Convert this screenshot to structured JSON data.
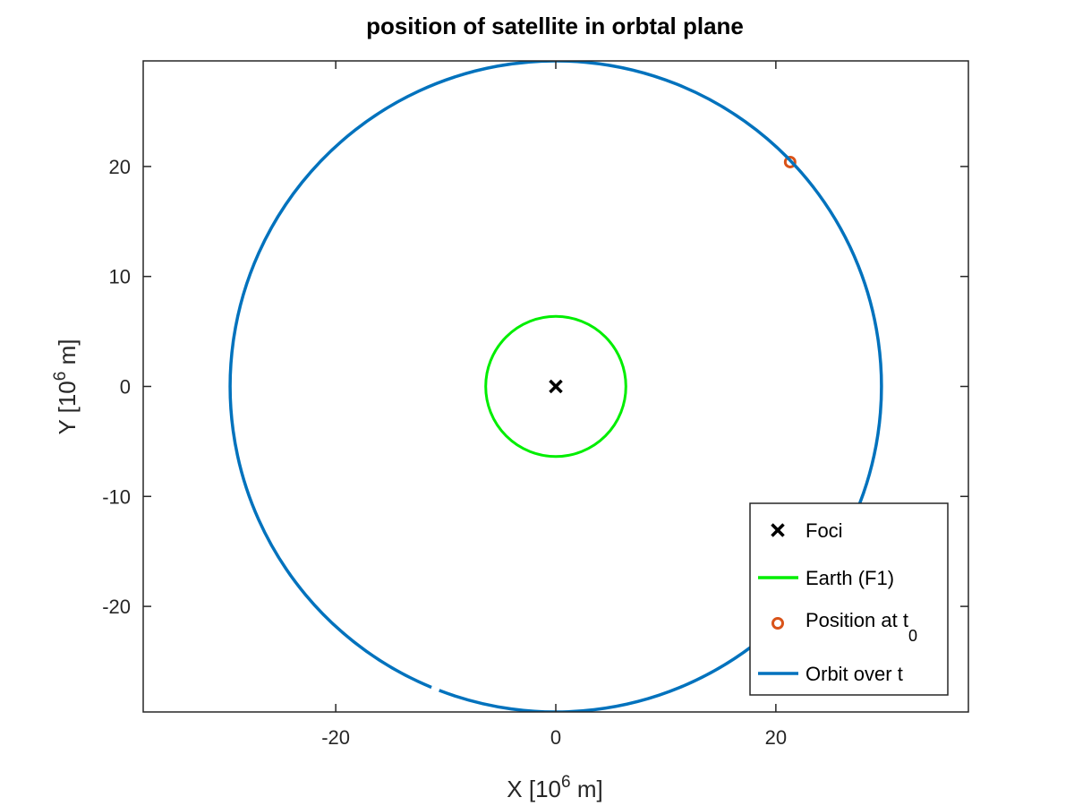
{
  "chart_data": {
    "type": "line",
    "title": "position of satellite in orbtal plane",
    "xlabel": {
      "base": "X [10",
      "exp": "6",
      "unit": " m]"
    },
    "ylabel": {
      "base": "Y [10",
      "exp": "6",
      "unit": " m]"
    },
    "xlim": [
      -37.5,
      37.5
    ],
    "ylim": [
      -29.6,
      29.6
    ],
    "xticks": [
      -20,
      0,
      20
    ],
    "yticks": [
      -20,
      -10,
      0,
      10,
      20
    ],
    "xtick_labels": [
      "-20",
      "0",
      "20"
    ],
    "ytick_labels": [
      "-20",
      "-10",
      "0",
      "10",
      "20"
    ],
    "grid": false,
    "legend_position": "bottom-right",
    "series": [
      {
        "name": "Foci",
        "kind": "marker-x",
        "color": "#000000",
        "points": [
          [
            0,
            0
          ]
        ]
      },
      {
        "name": "Earth (F1)",
        "kind": "circle",
        "color": "#00ee00",
        "center": [
          0,
          0
        ],
        "radius": 6.37
      },
      {
        "name": "Position at t",
        "name_sub": "0",
        "kind": "marker-o",
        "color": "#d95319",
        "points": [
          [
            21.3,
            20.4
          ]
        ]
      },
      {
        "name": "Orbit over t",
        "kind": "circle",
        "color": "#0072bd",
        "center": [
          0,
          0
        ],
        "radius": 29.6,
        "gap_x": [
          -11.3,
          -10.6
        ]
      }
    ]
  }
}
